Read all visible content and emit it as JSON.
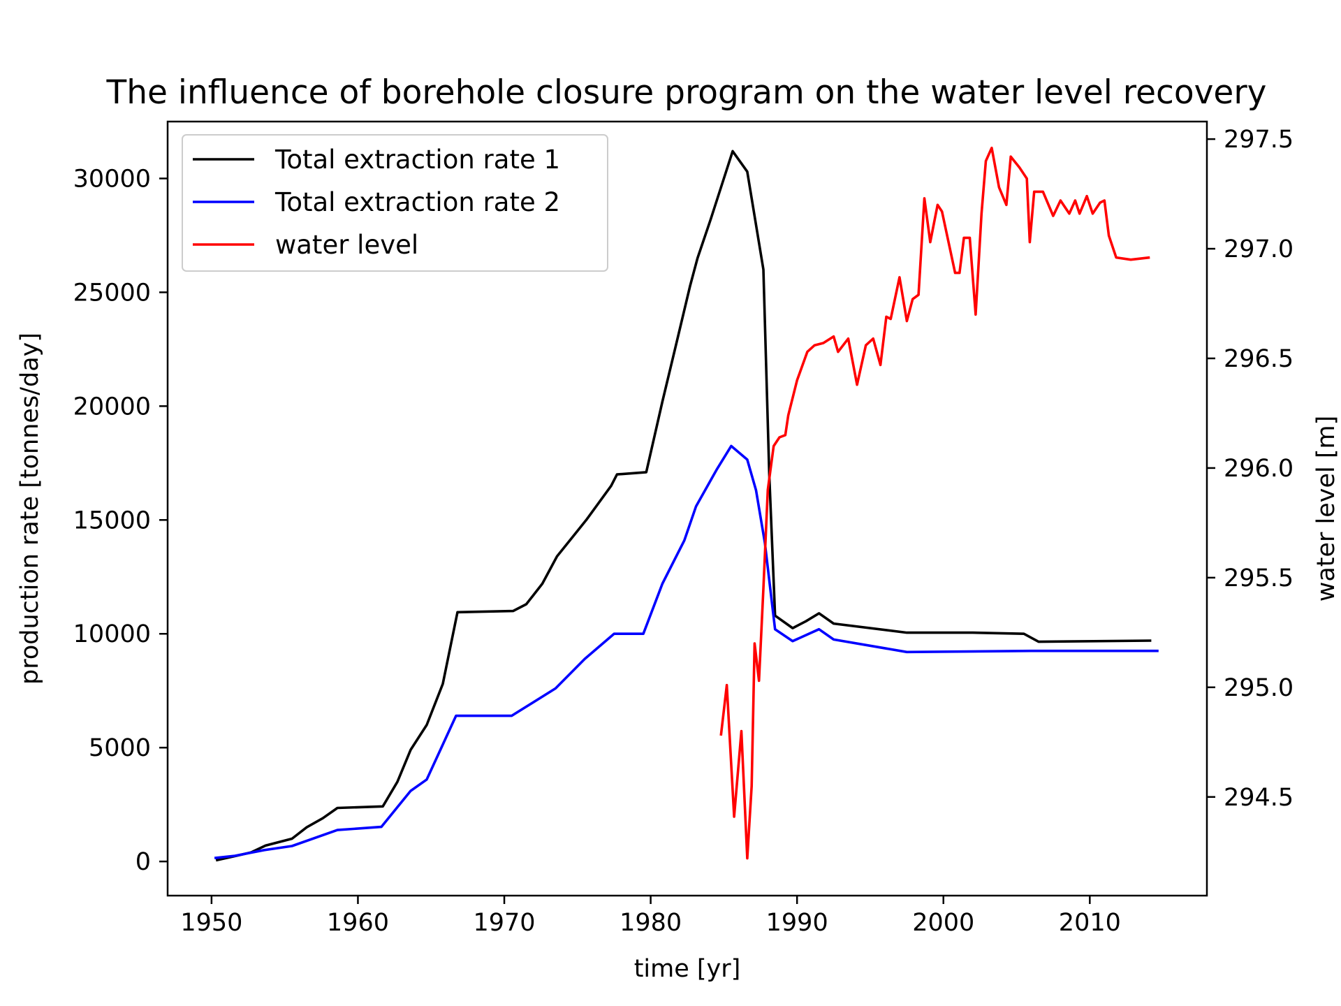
{
  "chart_data": {
    "type": "line",
    "title": "The influence of borehole closure program on the water level recovery",
    "xlabel": "time [yr]",
    "ylabel": "production rate [tonnes/day]",
    "ylabel_right": "water level [m]",
    "xlim": [
      1947,
      2018
    ],
    "ylim": [
      -1500,
      32500
    ],
    "ylim_right": [
      294.05,
      297.58
    ],
    "x_ticks": [
      1950,
      1960,
      1970,
      1980,
      1990,
      2000,
      2010
    ],
    "y_ticks": [
      0,
      5000,
      10000,
      15000,
      20000,
      25000,
      30000
    ],
    "y_ticks_right": [
      "294.5",
      "295.0",
      "295.5",
      "296.0",
      "296.5",
      "297.0",
      "297.5"
    ],
    "grid": false,
    "legend_position": "top-left",
    "series": [
      {
        "name": "Total extraction rate 1",
        "axis": "left",
        "color": "#000000",
        "points": [
          [
            1950.3,
            50
          ],
          [
            1951.7,
            250
          ],
          [
            1952.7,
            400
          ],
          [
            1953.7,
            700
          ],
          [
            1955.5,
            1000
          ],
          [
            1956.5,
            1500
          ],
          [
            1957.6,
            1900
          ],
          [
            1958.6,
            2350
          ],
          [
            1961.7,
            2420
          ],
          [
            1962.7,
            3500
          ],
          [
            1963.6,
            4900
          ],
          [
            1964.7,
            6000
          ],
          [
            1965.8,
            7800
          ],
          [
            1966.8,
            10950
          ],
          [
            1970.6,
            11000
          ],
          [
            1971.5,
            11300
          ],
          [
            1972.6,
            12200
          ],
          [
            1973.6,
            13400
          ],
          [
            1975.6,
            15000
          ],
          [
            1977.3,
            16500
          ],
          [
            1977.7,
            17000
          ],
          [
            1979.7,
            17100
          ],
          [
            1980.8,
            20200
          ],
          [
            1981.7,
            22600
          ],
          [
            1982.7,
            25300
          ],
          [
            1983.2,
            26500
          ],
          [
            1984.1,
            28200
          ],
          [
            1985.0,
            30000
          ],
          [
            1985.6,
            31200
          ],
          [
            1986.6,
            30300
          ],
          [
            1987.7,
            26000
          ],
          [
            1988.1,
            17000
          ],
          [
            1988.5,
            10800
          ],
          [
            1989.7,
            10250
          ],
          [
            1990.6,
            10550
          ],
          [
            1991.5,
            10900
          ],
          [
            1992.5,
            10450
          ],
          [
            1997.5,
            10050
          ],
          [
            2002.0,
            10050
          ],
          [
            2005.5,
            10000
          ],
          [
            2006.5,
            9650
          ],
          [
            2014.2,
            9700
          ]
        ]
      },
      {
        "name": "Total extraction rate 2",
        "axis": "left",
        "color": "#0000ff",
        "points": [
          [
            1950.2,
            150
          ],
          [
            1951.6,
            250
          ],
          [
            1953.6,
            500
          ],
          [
            1955.5,
            680
          ],
          [
            1958.6,
            1380
          ],
          [
            1961.6,
            1520
          ],
          [
            1963.6,
            3100
          ],
          [
            1964.7,
            3600
          ],
          [
            1966.7,
            6400
          ],
          [
            1970.5,
            6400
          ],
          [
            1973.5,
            7600
          ],
          [
            1975.5,
            8900
          ],
          [
            1977.5,
            10000
          ],
          [
            1979.5,
            10000
          ],
          [
            1980.8,
            12200
          ],
          [
            1982.3,
            14100
          ],
          [
            1983.1,
            15600
          ],
          [
            1984.5,
            17200
          ],
          [
            1985.5,
            18250
          ],
          [
            1986.6,
            17650
          ],
          [
            1987.2,
            16300
          ],
          [
            1987.8,
            14000
          ],
          [
            1988.5,
            10200
          ],
          [
            1989.7,
            9680
          ],
          [
            1991.5,
            10200
          ],
          [
            1992.5,
            9750
          ],
          [
            1997.5,
            9200
          ],
          [
            2006.0,
            9250
          ],
          [
            2014.7,
            9250
          ]
        ]
      },
      {
        "name": "water level",
        "axis": "right",
        "color": "#ff0000",
        "points": [
          [
            1984.8,
            294.78
          ],
          [
            1985.2,
            295.01
          ],
          [
            1985.7,
            294.41
          ],
          [
            1986.2,
            294.8
          ],
          [
            1986.6,
            294.22
          ],
          [
            1986.9,
            294.55
          ],
          [
            1987.1,
            295.2
          ],
          [
            1987.4,
            295.03
          ],
          [
            1987.7,
            295.45
          ],
          [
            1988.0,
            295.9
          ],
          [
            1988.4,
            296.1
          ],
          [
            1988.8,
            296.14
          ],
          [
            1989.2,
            296.15
          ],
          [
            1989.4,
            296.24
          ],
          [
            1990.0,
            296.4
          ],
          [
            1990.7,
            296.53
          ],
          [
            1991.2,
            296.56
          ],
          [
            1991.8,
            296.57
          ],
          [
            1992.5,
            296.6
          ],
          [
            1992.8,
            296.53
          ],
          [
            1993.5,
            296.59
          ],
          [
            1994.1,
            296.38
          ],
          [
            1994.7,
            296.56
          ],
          [
            1995.2,
            296.59
          ],
          [
            1995.7,
            296.47
          ],
          [
            1996.1,
            296.69
          ],
          [
            1996.4,
            296.68
          ],
          [
            1997.0,
            296.87
          ],
          [
            1997.5,
            296.67
          ],
          [
            1997.9,
            296.77
          ],
          [
            1998.3,
            296.79
          ],
          [
            1998.7,
            297.23
          ],
          [
            1999.1,
            297.03
          ],
          [
            1999.6,
            297.2
          ],
          [
            1999.9,
            297.17
          ],
          [
            2000.8,
            296.89
          ],
          [
            2001.1,
            296.89
          ],
          [
            2001.4,
            297.05
          ],
          [
            2001.8,
            297.05
          ],
          [
            2002.2,
            296.7
          ],
          [
            2002.6,
            297.16
          ],
          [
            2002.9,
            297.4
          ],
          [
            2003.3,
            297.46
          ],
          [
            2003.8,
            297.28
          ],
          [
            2004.3,
            297.2
          ],
          [
            2004.6,
            297.42
          ],
          [
            2005.2,
            297.37
          ],
          [
            2005.7,
            297.32
          ],
          [
            2005.9,
            297.03
          ],
          [
            2006.2,
            297.26
          ],
          [
            2006.8,
            297.26
          ],
          [
            2007.5,
            297.15
          ],
          [
            2008.0,
            297.22
          ],
          [
            2008.6,
            297.16
          ],
          [
            2009.0,
            297.22
          ],
          [
            2009.3,
            297.16
          ],
          [
            2009.8,
            297.24
          ],
          [
            2010.2,
            297.16
          ],
          [
            2010.7,
            297.21
          ],
          [
            2011.0,
            297.22
          ],
          [
            2011.3,
            297.06
          ],
          [
            2011.8,
            296.96
          ],
          [
            2012.8,
            296.95
          ],
          [
            2014.1,
            296.96
          ]
        ]
      }
    ]
  }
}
